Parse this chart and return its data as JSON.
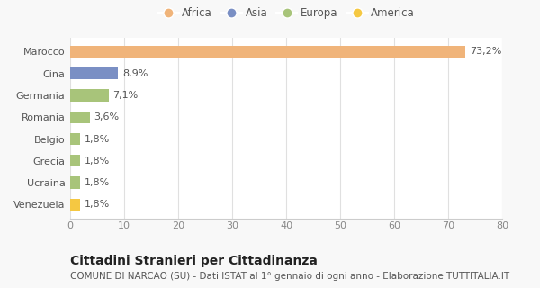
{
  "categories": [
    "Venezuela",
    "Ucraina",
    "Grecia",
    "Belgio",
    "Romania",
    "Germania",
    "Cina",
    "Marocco"
  ],
  "values": [
    1.8,
    1.8,
    1.8,
    1.8,
    3.6,
    7.1,
    8.9,
    73.2
  ],
  "labels": [
    "1,8%",
    "1,8%",
    "1,8%",
    "1,8%",
    "3,6%",
    "7,1%",
    "8,9%",
    "73,2%"
  ],
  "colors": [
    "#f5c842",
    "#a8c47a",
    "#a8c47a",
    "#a8c47a",
    "#a8c47a",
    "#a8c47a",
    "#7a8fc4",
    "#f0b47a"
  ],
  "legend_labels": [
    "Africa",
    "Asia",
    "Europa",
    "America"
  ],
  "legend_colors": [
    "#f0b47a",
    "#7a8fc4",
    "#a8c47a",
    "#f5c842"
  ],
  "xlim": [
    0,
    80
  ],
  "xticks": [
    0,
    10,
    20,
    30,
    40,
    50,
    60,
    70,
    80
  ],
  "title": "Cittadini Stranieri per Cittadinanza",
  "subtitle": "COMUNE DI NARCAO (SU) - Dati ISTAT al 1° gennaio di ogni anno - Elaborazione TUTTITALIA.IT",
  "bg_color": "#f8f8f8",
  "plot_bg_color": "#ffffff",
  "bar_height": 0.55,
  "title_fontsize": 10,
  "subtitle_fontsize": 7.5,
  "label_fontsize": 8,
  "tick_fontsize": 8,
  "legend_fontsize": 8.5,
  "grid_color": "#e0e0e0"
}
